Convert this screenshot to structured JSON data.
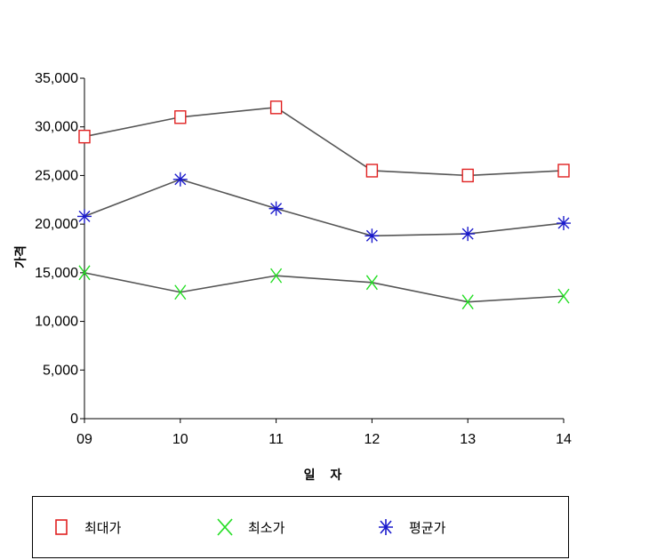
{
  "chart_data": {
    "type": "line",
    "xlabel": "일 자",
    "ylabel": "가격",
    "categories": [
      "09",
      "10",
      "11",
      "12",
      "13",
      "14"
    ],
    "ylim": [
      0,
      35000
    ],
    "yticks": [
      "0",
      "5,000",
      "10,000",
      "15,000",
      "20,000",
      "25,000",
      "30,000",
      "35,000"
    ],
    "grid": false,
    "legend_position": "bottom",
    "series": [
      {
        "name": "최대가",
        "marker": "square",
        "color": "#e02020",
        "values": [
          29000,
          31000,
          32000,
          25500,
          25000,
          25500
        ]
      },
      {
        "name": "최소가",
        "marker": "x",
        "color": "#22dd22",
        "values": [
          15000,
          13000,
          14700,
          14000,
          12000,
          12600
        ]
      },
      {
        "name": "평균가",
        "marker": "asterisk",
        "color": "#1a1acc",
        "values": [
          20800,
          24600,
          21600,
          18800,
          19000,
          20100
        ]
      }
    ]
  },
  "legend": {
    "items": [
      "최대가",
      "최소가",
      "평균가"
    ]
  }
}
